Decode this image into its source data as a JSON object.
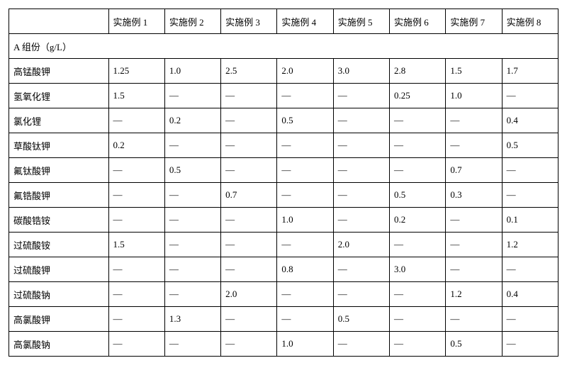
{
  "table": {
    "columns": [
      "",
      "实施例 1",
      "实施例 2",
      "实施例 3",
      "实施例 4",
      "实施例 5",
      "实施例 6",
      "实施例 7",
      "实施例 8"
    ],
    "section_label": "A 组份（g/L）",
    "dash": "—",
    "rows": [
      {
        "label": "高锰酸钾",
        "cells": [
          "1.25",
          "1.0",
          "2.5",
          "2.0",
          "3.0",
          "2.8",
          "1.5",
          "1.7"
        ]
      },
      {
        "label": "氢氧化锂",
        "cells": [
          "1.5",
          "—",
          "—",
          "—",
          "—",
          "0.25",
          "1.0",
          "—"
        ]
      },
      {
        "label": "氯化锂",
        "cells": [
          "—",
          "0.2",
          "—",
          "0.5",
          "—",
          "—",
          "—",
          "0.4"
        ]
      },
      {
        "label": "草酸钛钾",
        "cells": [
          "0.2",
          "—",
          "—",
          "—",
          "—",
          "—",
          "—",
          "0.5"
        ]
      },
      {
        "label": "氟钛酸钾",
        "cells": [
          "—",
          "0.5",
          "—",
          "—",
          "—",
          "—",
          "0.7",
          "—"
        ]
      },
      {
        "label": "氟锆酸钾",
        "cells": [
          "—",
          "—",
          "0.7",
          "—",
          "—",
          "0.5",
          "0.3",
          "—"
        ]
      },
      {
        "label": "碳酸锆铵",
        "cells": [
          "—",
          "—",
          "—",
          "1.0",
          "—",
          "0.2",
          "—",
          "0.1"
        ]
      },
      {
        "label": "过硫酸铵",
        "cells": [
          "1.5",
          "—",
          "—",
          "—",
          "2.0",
          "—",
          "—",
          "1.2"
        ]
      },
      {
        "label": "过硫酸钾",
        "cells": [
          "—",
          "—",
          "—",
          "0.8",
          "—",
          "3.0",
          "—",
          "—"
        ]
      },
      {
        "label": "过硫酸钠",
        "cells": [
          "—",
          "—",
          "2.0",
          "—",
          "—",
          "—",
          "1.2",
          "0.4"
        ]
      },
      {
        "label": "高氯酸钾",
        "cells": [
          "—",
          "1.3",
          "—",
          "—",
          "0.5",
          "—",
          "—",
          "—"
        ]
      },
      {
        "label": "高氯酸钠",
        "cells": [
          "—",
          "—",
          "—",
          "1.0",
          "—",
          "—",
          "0.5",
          "—"
        ]
      }
    ]
  }
}
